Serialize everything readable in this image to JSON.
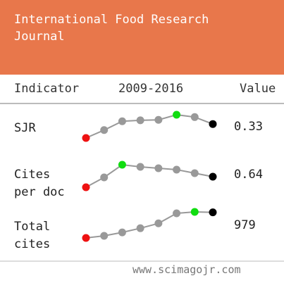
{
  "header": {
    "title": "International Food Research Journal"
  },
  "columns": {
    "indicator": "Indicator",
    "period": "2009-2016",
    "value": "Value"
  },
  "rows": [
    {
      "label": "SJR",
      "value": "0.33",
      "points": [
        0.3,
        0.317,
        0.336,
        0.338,
        0.339,
        0.35,
        0.345,
        0.33
      ]
    },
    {
      "label": "Cites per doc",
      "value": "0.64",
      "points": [
        0.49,
        0.63,
        0.81,
        0.78,
        0.76,
        0.74,
        0.69,
        0.64
      ]
    },
    {
      "label": "Total cites",
      "value": "979",
      "points": [
        610,
        640,
        690,
        750,
        820,
        965,
        985,
        979
      ]
    }
  ],
  "footer": "www.scimagojr.com"
}
